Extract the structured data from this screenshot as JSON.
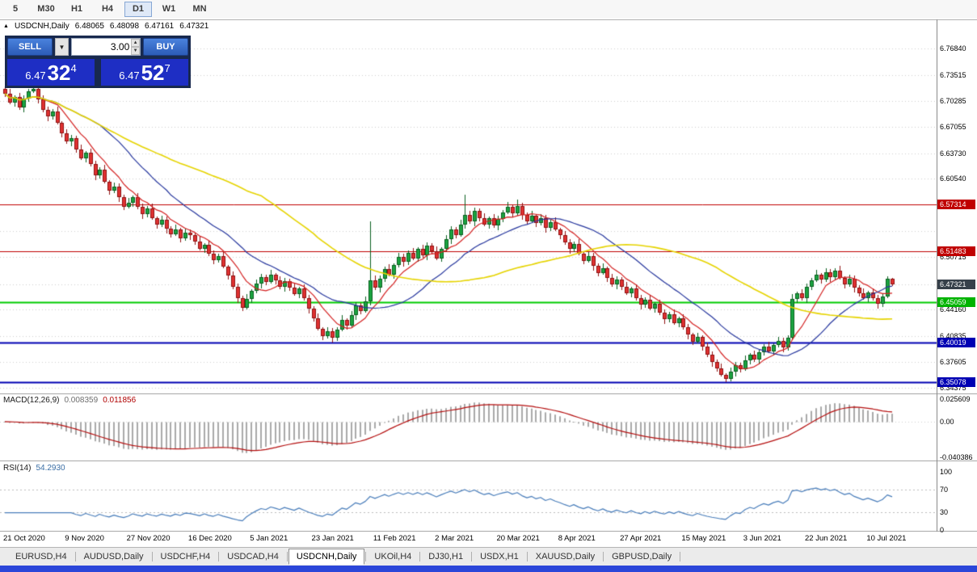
{
  "toolbar": {
    "timeframes": [
      "5",
      "M30",
      "H1",
      "H4",
      "D1",
      "W1",
      "MN"
    ],
    "active": "D1"
  },
  "chart_header": {
    "collapse_icon": "▲",
    "title": "USDCNH,Daily",
    "open": "6.48065",
    "high": "6.48098",
    "low": "6.47161",
    "close": "6.47321"
  },
  "one_click": {
    "sell_label": "SELL",
    "buy_label": "BUY",
    "lots": "3.00",
    "sell_price": {
      "prefix": "6.47",
      "big": "32",
      "sup": "4"
    },
    "buy_price": {
      "prefix": "6.47",
      "big": "52",
      "sup": "7"
    }
  },
  "price_scale": {
    "regular": [
      "6.76840",
      "6.73515",
      "6.70285",
      "6.67055",
      "6.63730",
      "6.60540",
      "6.50715",
      "6.44160",
      "6.40835",
      "6.37605",
      "6.34375"
    ],
    "highlighted": [
      {
        "text": "6.57314",
        "bg": "#c00000",
        "fg": "#ffffff"
      },
      {
        "text": "6.51483",
        "bg": "#c00000",
        "fg": "#ffffff"
      },
      {
        "text": "6.45059",
        "bg": "#00b300",
        "fg": "#ffffff"
      },
      {
        "text": "6.40019",
        "bg": "#0000b3",
        "fg": "#ffffff"
      },
      {
        "text": "6.35078",
        "bg": "#0000b3",
        "fg": "#ffffff"
      }
    ],
    "current": {
      "text": "6.47321",
      "bg": "#36404a",
      "fg": "#ffffff"
    }
  },
  "macd": {
    "label": "MACD(12,26,9)",
    "value_main": "0.008359",
    "value_signal": "0.011856",
    "params": {
      "fast": 12,
      "slow": 26,
      "signal": 9
    },
    "scale": [
      {
        "text": "0.025609",
        "v": 0.025609
      },
      {
        "text": "0.00",
        "v": 0
      },
      {
        "text": "-0.040386",
        "v": -0.040386
      }
    ],
    "range": {
      "min": -0.0445,
      "max": 0.0313
    }
  },
  "rsi": {
    "label": "RSI(14)",
    "value": "54.2930",
    "period": 14,
    "levels": [
      70,
      30
    ],
    "scale": [
      {
        "text": "100",
        "v": 100
      },
      {
        "text": "70",
        "v": 70
      },
      {
        "text": "30",
        "v": 30
      },
      {
        "text": "0",
        "v": 0
      }
    ]
  },
  "tabs": {
    "items": [
      "EURUSD,H4",
      "AUDUSD,Daily",
      "USDCHF,H4",
      "USDCAD,H4",
      "USDCNH,Daily",
      "UKOil,H4",
      "DJ30,H1",
      "USDX,H1",
      "XAUUSD,Daily",
      "GBPUSD,Daily"
    ],
    "active": "USDCNH,Daily"
  },
  "colors": {
    "up_fill": "#1ba441",
    "up_border": "#0a5f1f",
    "down_fill": "#e03131",
    "down_border": "#8f1212",
    "ma_fast": "#d42020",
    "ma_mid": "#27379e",
    "ma_slow": "#e6d400",
    "macd_hist": "#a9a9a9",
    "macd_signal": "#b50f0f",
    "rsi_line": "#4a7ebb",
    "grid": "#d0d0d0",
    "level_dash": "#bdbdbd",
    "taskbar": "#2b46d9"
  },
  "chart_data": {
    "type": "candlestick",
    "title": "USDCNH,Daily",
    "symbol": "USDCNH",
    "timeframe": "Daily",
    "x_labels": [
      "21 Oct 2020",
      "9 Nov 2020",
      "27 Nov 2020",
      "16 Dec 2020",
      "5 Jan 2021",
      "23 Jan 2021",
      "11 Feb 2021",
      "2 Mar 2021",
      "20 Mar 2021",
      "8 Apr 2021",
      "27 Apr 2021",
      "15 May 2021",
      "3 Jun 2021",
      "22 Jun 2021",
      "10 Jul 2021"
    ],
    "bars_per_label": 13,
    "price_range": {
      "min": 6.3367,
      "max": 6.7886
    },
    "grid_levels": [
      6.7684,
      6.73515,
      6.70285,
      6.67055,
      6.6373,
      6.6054,
      6.57314,
      6.54035,
      6.50715,
      6.47321,
      6.4416,
      6.40835,
      6.37605,
      6.34375
    ],
    "h_lines": [
      {
        "price": 6.57314,
        "color": "#c00000",
        "width": 1
      },
      {
        "price": 6.51483,
        "color": "#c00000",
        "width": 1
      },
      {
        "price": 6.45059,
        "color": "#00cc00",
        "width": 2
      },
      {
        "price": 6.40019,
        "color": "#0000b3",
        "width": 2
      },
      {
        "price": 6.35078,
        "color": "#0000b3",
        "width": 2
      }
    ],
    "moving_averages": [
      {
        "period": 8,
        "color": "#d42020"
      },
      {
        "period": 21,
        "color": "#27379e"
      },
      {
        "period": 55,
        "color": "#e6d400"
      }
    ],
    "candles": [
      [
        6.718,
        6.721,
        6.708,
        6.712
      ],
      [
        6.712,
        6.718,
        6.699,
        6.701
      ],
      [
        6.701,
        6.71,
        6.696,
        6.708
      ],
      [
        6.708,
        6.713,
        6.692,
        6.695
      ],
      [
        6.695,
        6.71,
        6.689,
        6.706
      ],
      [
        6.706,
        6.718,
        6.702,
        6.715
      ],
      [
        6.715,
        6.732,
        6.713,
        6.718
      ],
      [
        6.718,
        6.72,
        6.7,
        6.705
      ],
      [
        6.705,
        6.71,
        6.689,
        6.692
      ],
      [
        6.692,
        6.696,
        6.677,
        6.683
      ],
      [
        6.683,
        6.693,
        6.679,
        6.69
      ],
      [
        6.69,
        6.696,
        6.673,
        6.675
      ],
      [
        6.675,
        6.677,
        6.657,
        6.662
      ],
      [
        6.662,
        6.667,
        6.649,
        6.652
      ],
      [
        6.652,
        6.66,
        6.646,
        6.656
      ],
      [
        6.656,
        6.659,
        6.638,
        6.642
      ],
      [
        6.642,
        6.648,
        6.629,
        6.631
      ],
      [
        6.631,
        6.64,
        6.626,
        6.638
      ],
      [
        6.638,
        6.643,
        6.621,
        6.624
      ],
      [
        6.624,
        6.628,
        6.604,
        6.61
      ],
      [
        6.61,
        6.62,
        6.606,
        6.617
      ],
      [
        6.617,
        6.623,
        6.6,
        6.602
      ],
      [
        6.602,
        6.604,
        6.585,
        6.59
      ],
      [
        6.59,
        6.601,
        6.587,
        6.596
      ],
      [
        6.596,
        6.6,
        6.576,
        6.582
      ],
      [
        6.582,
        6.585,
        6.566,
        6.57
      ],
      [
        6.57,
        6.581,
        6.568,
        6.575
      ],
      [
        6.575,
        6.584,
        6.57,
        6.582
      ],
      [
        6.582,
        6.587,
        6.567,
        6.57
      ],
      [
        6.57,
        6.574,
        6.555,
        6.561
      ],
      [
        6.561,
        6.571,
        6.557,
        6.568
      ],
      [
        6.568,
        6.574,
        6.554,
        6.556
      ],
      [
        6.556,
        6.558,
        6.543,
        6.548
      ],
      [
        6.548,
        6.559,
        6.545,
        6.554
      ],
      [
        6.554,
        6.558,
        6.537,
        6.543
      ],
      [
        6.543,
        6.546,
        6.532,
        6.536
      ],
      [
        6.536,
        6.548,
        6.534,
        6.542
      ],
      [
        6.542,
        6.544,
        6.526,
        6.531
      ],
      [
        6.531,
        6.543,
        6.528,
        6.538
      ],
      [
        6.538,
        6.542,
        6.529,
        6.535
      ],
      [
        6.535,
        6.538,
        6.523,
        6.527
      ],
      [
        6.527,
        6.533,
        6.516,
        6.518
      ],
      [
        6.518,
        6.525,
        6.513,
        6.523
      ],
      [
        6.523,
        6.528,
        6.509,
        6.512
      ],
      [
        6.512,
        6.516,
        6.498,
        6.504
      ],
      [
        6.504,
        6.512,
        6.5,
        6.509
      ],
      [
        6.509,
        6.515,
        6.493,
        6.495
      ],
      [
        6.495,
        6.497,
        6.479,
        6.484
      ],
      [
        6.484,
        6.489,
        6.467,
        6.47
      ],
      [
        6.47,
        6.474,
        6.45,
        6.456
      ],
      [
        6.456,
        6.459,
        6.44,
        6.444
      ],
      [
        6.444,
        6.461,
        6.442,
        6.455
      ],
      [
        6.455,
        6.467,
        6.45,
        6.465
      ],
      [
        6.465,
        6.479,
        6.462,
        6.474
      ],
      [
        6.474,
        6.486,
        6.468,
        6.482
      ],
      [
        6.482,
        6.485,
        6.472,
        6.476
      ],
      [
        6.476,
        6.491,
        6.474,
        6.485
      ],
      [
        6.485,
        6.487,
        6.473,
        6.478
      ],
      [
        6.478,
        6.483,
        6.467,
        6.47
      ],
      [
        6.47,
        6.481,
        6.464,
        6.477
      ],
      [
        6.477,
        6.48,
        6.465,
        6.469
      ],
      [
        6.469,
        6.475,
        6.459,
        6.461
      ],
      [
        6.461,
        6.47,
        6.456,
        6.468
      ],
      [
        6.468,
        6.473,
        6.453,
        6.456
      ],
      [
        6.456,
        6.46,
        6.437,
        6.443
      ],
      [
        6.443,
        6.446,
        6.427,
        6.431
      ],
      [
        6.431,
        6.437,
        6.416,
        6.418
      ],
      [
        6.418,
        6.42,
        6.403,
        6.408
      ],
      [
        6.408,
        6.42,
        6.405,
        6.415
      ],
      [
        6.415,
        6.419,
        6.4,
        6.406
      ],
      [
        6.406,
        6.42,
        6.402,
        6.417
      ],
      [
        6.417,
        6.435,
        6.415,
        6.429
      ],
      [
        6.429,
        6.431,
        6.417,
        6.422
      ],
      [
        6.422,
        6.44,
        6.419,
        6.435
      ],
      [
        6.435,
        6.451,
        6.429,
        6.447
      ],
      [
        6.447,
        6.45,
        6.436,
        6.44
      ],
      [
        6.44,
        6.458,
        6.438,
        6.452
      ],
      [
        6.452,
        6.552,
        6.447,
        6.478
      ],
      [
        6.478,
        6.484,
        6.466,
        6.469
      ],
      [
        6.469,
        6.484,
        6.463,
        6.48
      ],
      [
        6.48,
        6.495,
        6.476,
        6.492
      ],
      [
        6.492,
        6.498,
        6.483,
        6.485
      ],
      [
        6.485,
        6.499,
        6.48,
        6.497
      ],
      [
        6.497,
        6.513,
        6.494,
        6.508
      ],
      [
        6.508,
        6.512,
        6.495,
        6.501
      ],
      [
        6.501,
        6.516,
        6.497,
        6.513
      ],
      [
        6.513,
        6.519,
        6.504,
        6.506
      ],
      [
        6.506,
        6.52,
        6.501,
        6.518
      ],
      [
        6.518,
        6.523,
        6.507,
        6.51
      ],
      [
        6.51,
        6.526,
        6.504,
        6.522
      ],
      [
        6.522,
        6.525,
        6.511,
        6.515
      ],
      [
        6.515,
        6.521,
        6.504,
        6.506
      ],
      [
        6.506,
        6.52,
        6.501,
        6.518
      ],
      [
        6.518,
        6.535,
        6.515,
        6.53
      ],
      [
        6.53,
        6.546,
        6.524,
        6.542
      ],
      [
        6.542,
        6.545,
        6.531,
        6.535
      ],
      [
        6.535,
        6.554,
        6.533,
        6.548
      ],
      [
        6.548,
        6.585,
        6.543,
        6.56
      ],
      [
        6.56,
        6.565,
        6.549,
        6.552
      ],
      [
        6.552,
        6.569,
        6.546,
        6.565
      ],
      [
        6.565,
        6.568,
        6.552,
        6.556
      ],
      [
        6.556,
        6.562,
        6.546,
        6.548
      ],
      [
        6.548,
        6.558,
        6.543,
        6.556
      ],
      [
        6.556,
        6.561,
        6.544,
        6.547
      ],
      [
        6.547,
        6.559,
        6.541,
        6.555
      ],
      [
        6.555,
        6.566,
        6.551,
        6.563
      ],
      [
        6.563,
        6.576,
        6.561,
        6.57
      ],
      [
        6.57,
        6.572,
        6.557,
        6.562
      ],
      [
        6.562,
        6.579,
        6.559,
        6.571
      ],
      [
        6.571,
        6.575,
        6.554,
        6.56
      ],
      [
        6.56,
        6.563,
        6.548,
        6.552
      ],
      [
        6.552,
        6.565,
        6.55,
        6.559
      ],
      [
        6.559,
        6.561,
        6.545,
        6.55
      ],
      [
        6.55,
        6.561,
        6.547,
        6.556
      ],
      [
        6.556,
        6.56,
        6.538,
        6.544
      ],
      [
        6.544,
        6.554,
        6.54,
        6.551
      ],
      [
        6.551,
        6.557,
        6.54,
        6.542
      ],
      [
        6.542,
        6.544,
        6.53,
        6.535
      ],
      [
        6.535,
        6.54,
        6.523,
        6.526
      ],
      [
        6.526,
        6.53,
        6.512,
        6.518
      ],
      [
        6.518,
        6.527,
        6.514,
        6.524
      ],
      [
        6.524,
        6.53,
        6.51,
        6.512
      ],
      [
        6.512,
        6.514,
        6.498,
        6.503
      ],
      [
        6.503,
        6.514,
        6.5,
        6.509
      ],
      [
        6.509,
        6.513,
        6.49,
        6.496
      ],
      [
        6.496,
        6.499,
        6.483,
        6.487
      ],
      [
        6.487,
        6.499,
        6.485,
        6.493
      ],
      [
        6.493,
        6.495,
        6.476,
        6.481
      ],
      [
        6.481,
        6.486,
        6.47,
        6.473
      ],
      [
        6.473,
        6.483,
        6.467,
        6.479
      ],
      [
        6.479,
        6.482,
        6.466,
        6.47
      ],
      [
        6.47,
        6.476,
        6.46,
        6.462
      ],
      [
        6.462,
        6.47,
        6.457,
        6.468
      ],
      [
        6.468,
        6.473,
        6.453,
        6.456
      ],
      [
        6.456,
        6.46,
        6.442,
        6.448
      ],
      [
        6.448,
        6.457,
        6.444,
        6.454
      ],
      [
        6.454,
        6.46,
        6.441,
        6.443
      ],
      [
        6.443,
        6.451,
        6.438,
        6.449
      ],
      [
        6.449,
        6.454,
        6.435,
        6.438
      ],
      [
        6.438,
        6.442,
        6.424,
        6.43
      ],
      [
        6.43,
        6.439,
        6.426,
        6.436
      ],
      [
        6.436,
        6.442,
        6.423,
        6.425
      ],
      [
        6.425,
        6.433,
        6.42,
        6.431
      ],
      [
        6.431,
        6.436,
        6.417,
        6.42
      ],
      [
        6.42,
        6.424,
        6.404,
        6.41
      ],
      [
        6.41,
        6.413,
        6.397,
        6.401
      ],
      [
        6.401,
        6.413,
        6.399,
        6.407
      ],
      [
        6.407,
        6.409,
        6.39,
        6.395
      ],
      [
        6.395,
        6.4,
        6.382,
        6.385
      ],
      [
        6.385,
        6.389,
        6.37,
        6.376
      ],
      [
        6.376,
        6.379,
        6.364,
        6.368
      ],
      [
        6.368,
        6.374,
        6.358,
        6.36
      ],
      [
        6.36,
        6.362,
        6.351,
        6.355
      ],
      [
        6.355,
        6.369,
        6.352,
        6.364
      ],
      [
        6.364,
        6.376,
        6.358,
        6.372
      ],
      [
        6.372,
        6.375,
        6.363,
        6.367
      ],
      [
        6.367,
        6.384,
        6.365,
        6.378
      ],
      [
        6.378,
        6.387,
        6.373,
        6.385
      ],
      [
        6.385,
        6.39,
        6.376,
        6.379
      ],
      [
        6.379,
        6.392,
        6.373,
        6.388
      ],
      [
        6.388,
        6.398,
        6.384,
        6.395
      ],
      [
        6.395,
        6.401,
        6.387,
        6.389
      ],
      [
        6.389,
        6.399,
        6.384,
        6.397
      ],
      [
        6.397,
        6.407,
        6.394,
        6.402
      ],
      [
        6.402,
        6.406,
        6.388,
        6.394
      ],
      [
        6.394,
        6.409,
        6.39,
        6.406
      ],
      [
        6.406,
        6.461,
        6.404,
        6.455
      ],
      [
        6.455,
        6.464,
        6.45,
        6.462
      ],
      [
        6.462,
        6.467,
        6.453,
        6.456
      ],
      [
        6.456,
        6.474,
        6.45,
        6.47
      ],
      [
        6.47,
        6.481,
        6.466,
        6.478
      ],
      [
        6.478,
        6.491,
        6.476,
        6.485
      ],
      [
        6.485,
        6.487,
        6.474,
        6.479
      ],
      [
        6.479,
        6.493,
        6.476,
        6.488
      ],
      [
        6.488,
        6.492,
        6.476,
        6.482
      ],
      [
        6.482,
        6.493,
        6.478,
        6.49
      ],
      [
        6.49,
        6.496,
        6.479,
        6.481
      ],
      [
        6.481,
        6.483,
        6.468,
        6.473
      ],
      [
        6.473,
        6.485,
        6.47,
        6.48
      ],
      [
        6.48,
        6.484,
        6.463,
        6.469
      ],
      [
        6.469,
        6.472,
        6.458,
        6.462
      ],
      [
        6.462,
        6.468,
        6.454,
        6.456
      ],
      [
        6.456,
        6.465,
        6.451,
        6.463
      ],
      [
        6.463,
        6.468,
        6.453,
        6.456
      ],
      [
        6.456,
        6.46,
        6.443,
        6.449
      ],
      [
        6.449,
        6.461,
        6.445,
        6.458
      ],
      [
        6.458,
        6.483,
        6.456,
        6.48
      ],
      [
        6.4807,
        6.481,
        6.4716,
        6.4732
      ]
    ]
  }
}
